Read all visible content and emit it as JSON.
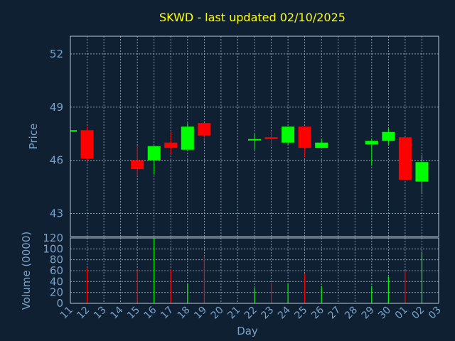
{
  "chart_data": [
    {
      "type": "candlestick",
      "title": "SKWD - last updated 02/10/2025",
      "ylabel": "Price",
      "ylim": [
        41.7,
        53.0
      ],
      "yticks": [
        43,
        46,
        49,
        52
      ],
      "grid": true,
      "x": [
        "11",
        "12",
        "13",
        "14",
        "15",
        "16",
        "17",
        "18",
        "19",
        "20",
        "21",
        "22",
        "23",
        "24",
        "25",
        "26",
        "27",
        "28",
        "29",
        "30",
        "01",
        "02",
        "03"
      ],
      "candles": [
        {
          "x": "11",
          "open": 47.7,
          "close": 47.7,
          "high": 47.7,
          "low": 47.7,
          "color": "#00ff00"
        },
        {
          "x": "12",
          "open": 47.7,
          "close": 46.1,
          "high": 47.9,
          "low": 46.0,
          "color": "#ff0000"
        },
        {
          "x": "15",
          "open": 46.0,
          "close": 45.5,
          "high": 46.8,
          "low": 45.1,
          "color": "#ff0000"
        },
        {
          "x": "16",
          "open": 46.0,
          "close": 46.8,
          "high": 46.8,
          "low": 45.2,
          "color": "#00ff00"
        },
        {
          "x": "17",
          "open": 47.0,
          "close": 46.7,
          "high": 47.6,
          "low": 46.3,
          "color": "#ff0000"
        },
        {
          "x": "18",
          "open": 46.6,
          "close": 47.9,
          "high": 48.1,
          "low": 46.6,
          "color": "#00ff00"
        },
        {
          "x": "19",
          "open": 48.1,
          "close": 47.4,
          "high": 48.1,
          "low": 47.1,
          "color": "#ff0000"
        },
        {
          "x": "22",
          "open": 47.2,
          "close": 47.2,
          "high": 47.5,
          "low": 46.6,
          "color": "#00ff00"
        },
        {
          "x": "23",
          "open": 47.3,
          "close": 47.2,
          "high": 47.6,
          "low": 46.8,
          "color": "#ff0000"
        },
        {
          "x": "24",
          "open": 47.0,
          "close": 47.9,
          "high": 47.9,
          "low": 46.9,
          "color": "#00ff00"
        },
        {
          "x": "25",
          "open": 47.9,
          "close": 46.7,
          "high": 47.9,
          "low": 46.2,
          "color": "#ff0000"
        },
        {
          "x": "26",
          "open": 46.7,
          "close": 47.0,
          "high": 47.2,
          "low": 46.7,
          "color": "#00ff00"
        },
        {
          "x": "29",
          "open": 46.9,
          "close": 47.1,
          "high": 47.2,
          "low": 45.7,
          "color": "#00ff00"
        },
        {
          "x": "30",
          "open": 47.1,
          "close": 47.6,
          "high": 47.8,
          "low": 46.9,
          "color": "#00ff00"
        },
        {
          "x": "01",
          "open": 47.3,
          "close": 44.9,
          "high": 47.3,
          "low": 44.9,
          "color": "#ff0000"
        },
        {
          "x": "02",
          "open": 44.8,
          "close": 45.9,
          "high": 46.3,
          "low": 44.1,
          "color": "#00ff00"
        }
      ]
    },
    {
      "type": "bar",
      "ylabel": "Volume (0000)",
      "xlabel": "Day",
      "ylim": [
        0,
        120
      ],
      "yticks": [
        0,
        20,
        40,
        60,
        80,
        100,
        120
      ],
      "grid": true,
      "x": [
        "11",
        "12",
        "13",
        "14",
        "15",
        "16",
        "17",
        "18",
        "19",
        "20",
        "21",
        "22",
        "23",
        "24",
        "25",
        "26",
        "27",
        "28",
        "29",
        "30",
        "01",
        "02",
        "03"
      ],
      "bars": [
        {
          "x": "12",
          "value": 65,
          "color": "#ff0000"
        },
        {
          "x": "15",
          "value": 63,
          "color": "#ff0000"
        },
        {
          "x": "16",
          "value": 120,
          "color": "#00ff00"
        },
        {
          "x": "17",
          "value": 63,
          "color": "#ff0000"
        },
        {
          "x": "18",
          "value": 37,
          "color": "#00ff00"
        },
        {
          "x": "19",
          "value": 87,
          "color": "#ff0000"
        },
        {
          "x": "22",
          "value": 28,
          "color": "#00ff00"
        },
        {
          "x": "23",
          "value": 38,
          "color": "#ff0000"
        },
        {
          "x": "24",
          "value": 37,
          "color": "#00ff00"
        },
        {
          "x": "25",
          "value": 55,
          "color": "#ff0000"
        },
        {
          "x": "26",
          "value": 32,
          "color": "#00ff00"
        },
        {
          "x": "29",
          "value": 32,
          "color": "#00ff00"
        },
        {
          "x": "30",
          "value": 49,
          "color": "#00ff00"
        },
        {
          "x": "01",
          "value": 60,
          "color": "#ff0000"
        },
        {
          "x": "02",
          "value": 95,
          "color": "#00ff00"
        }
      ]
    }
  ],
  "colors": {
    "background": "#0f2033",
    "title": "#ffff00",
    "axis_text": "#7aa2c8",
    "up": "#00ff00",
    "down": "#ff0000"
  }
}
